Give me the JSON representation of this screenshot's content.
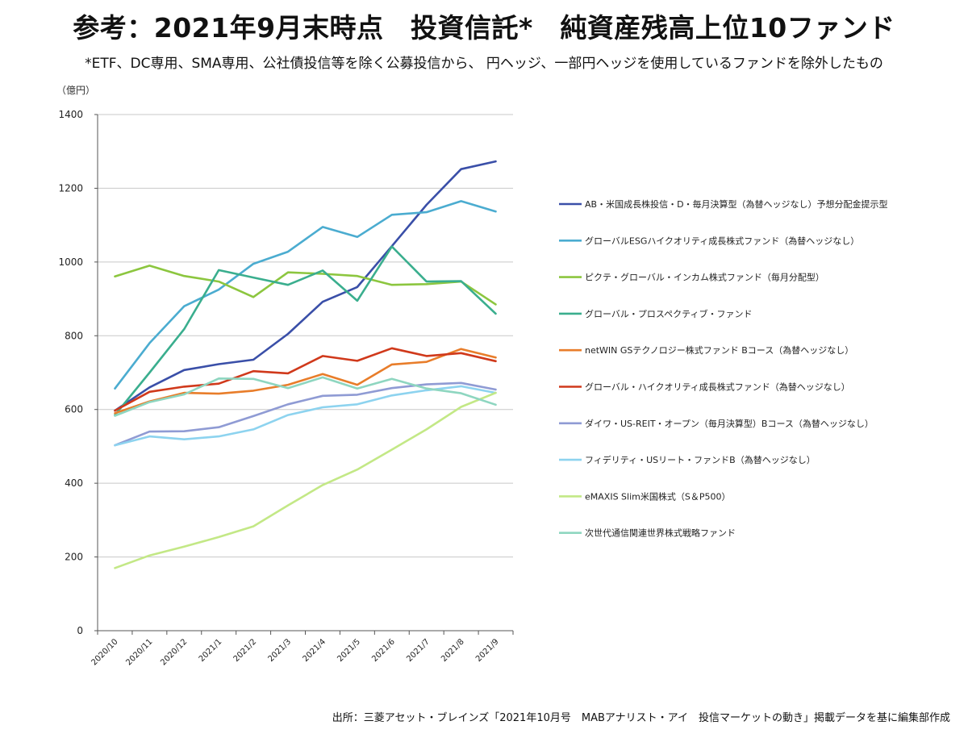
{
  "page": {
    "title": "参考：2021年9月末時点　投資信託*　純資産残高上位10ファンド",
    "subtitle": "*ETF、DC専用、SMA専用、公社債投信等を除く公募投信から、 円ヘッジ、一部円ヘッジを使用しているファンドを除外したもの",
    "source": "出所：三菱アセット・ブレインズ「2021年10月号　MABアナリスト・アイ　投信マーケットの動き」掲載データを基に編集部作成"
  },
  "chart_data": {
    "type": "line",
    "ylabel": "（億円）",
    "ylim": [
      0,
      1400
    ],
    "yticks": [
      0,
      200,
      400,
      600,
      800,
      1000,
      1200,
      1400
    ],
    "grid": "horizontal",
    "legend_position": "right",
    "categories": [
      "2020/10",
      "2020/11",
      "2020/12",
      "2021/1",
      "2021/2",
      "2021/3",
      "2021/4",
      "2021/5",
      "2021/6",
      "2021/7",
      "2021/8",
      "2021/9"
    ],
    "series": [
      {
        "name": "AB・米国成長株投信・D・毎月決算型（為替ヘッジなし）予想分配金提示型",
        "color": "#3a4fa8",
        "values": [
          597,
          660,
          707,
          723,
          735,
          805,
          892,
          932,
          1043,
          1155,
          1252,
          1273
        ]
      },
      {
        "name": "グローバルESGハイクオリティ成長株式ファンド（為替ヘッジなし）",
        "color": "#4bacd0",
        "values": [
          657,
          780,
          880,
          925,
          995,
          1028,
          1095,
          1068,
          1128,
          1135,
          1165,
          1137
        ]
      },
      {
        "name": "ピクテ・グローバル・インカム株式ファンド（毎月分配型）",
        "color": "#8cc63f",
        "values": [
          961,
          990,
          962,
          947,
          905,
          972,
          968,
          962,
          938,
          940,
          947,
          885
        ]
      },
      {
        "name": "グローバル・プロスペクティブ・ファンド",
        "color": "#3aae8e",
        "values": [
          585,
          700,
          818,
          978,
          958,
          938,
          977,
          895,
          1042,
          947,
          948,
          860
        ]
      },
      {
        "name": "netWIN GSテクノロジー株式ファンド Bコース（為替ヘッジなし）",
        "color": "#e87d2a",
        "values": [
          590,
          622,
          645,
          643,
          651,
          667,
          696,
          667,
          722,
          729,
          764,
          741
        ]
      },
      {
        "name": "グローバル・ハイクオリティ成長株式ファンド（為替ヘッジなし）",
        "color": "#d0391b",
        "values": [
          597,
          648,
          662,
          670,
          704,
          698,
          745,
          732,
          766,
          745,
          753,
          731
        ]
      },
      {
        "name": "ダイワ・US-REIT・オープン（毎月決算型）Bコース（為替ヘッジなし）",
        "color": "#8f9bd4",
        "values": [
          503,
          540,
          541,
          552,
          582,
          614,
          637,
          640,
          658,
          668,
          672,
          654
        ]
      },
      {
        "name": "フィデリティ・USリート・ファンドB（為替ヘッジなし）",
        "color": "#8dd3ef",
        "values": [
          503,
          527,
          519,
          527,
          546,
          585,
          606,
          614,
          638,
          652,
          663,
          645
        ]
      },
      {
        "name": "eMAXIS Slim米国株式（S＆P500）",
        "color": "#c3e886",
        "values": [
          170,
          204,
          228,
          254,
          283,
          340,
          395,
          437,
          491,
          546,
          607,
          645
        ]
      },
      {
        "name": "次世代通信関連世界株式戦略ファンド",
        "color": "#8ed6c0",
        "values": [
          583,
          620,
          641,
          684,
          683,
          658,
          687,
          657,
          683,
          657,
          644,
          613
        ]
      }
    ]
  }
}
